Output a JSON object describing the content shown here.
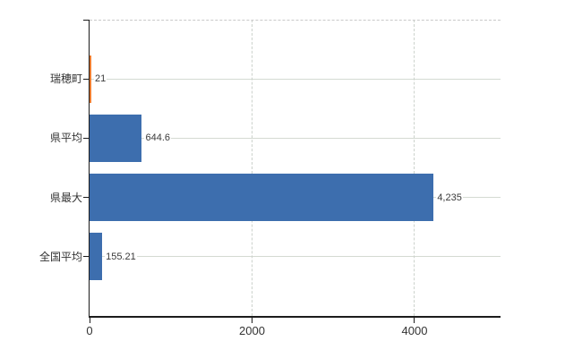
{
  "chart_data": {
    "type": "bar",
    "orientation": "horizontal",
    "title": "",
    "categories": [
      "瑞穂町",
      "県平均",
      "県最大",
      "全国平均"
    ],
    "values": [
      21,
      644.6,
      4235,
      155.21
    ],
    "value_labels": [
      "21",
      "644.6",
      "4,235",
      "155.21"
    ],
    "bar_colors": [
      "#ed7d31",
      "#3d6eae",
      "#3d6eae",
      "#3d6eae"
    ],
    "x_ticks": [
      0,
      2000,
      4000
    ],
    "x_tick_labels": [
      "0",
      "2000",
      "4000"
    ],
    "xlim": [
      0,
      5058
    ],
    "grid": true,
    "legend": false,
    "plot_top_border": "dashed"
  },
  "colors": {
    "background": "#ffffff",
    "axis": "#1c1c1c",
    "grid_horizontal": "#d4dad2",
    "grid_vertical": "#ccd2cc",
    "top_border": "#c9c9c9",
    "label_text": "#333333",
    "value_text": "#3a3a3a"
  }
}
